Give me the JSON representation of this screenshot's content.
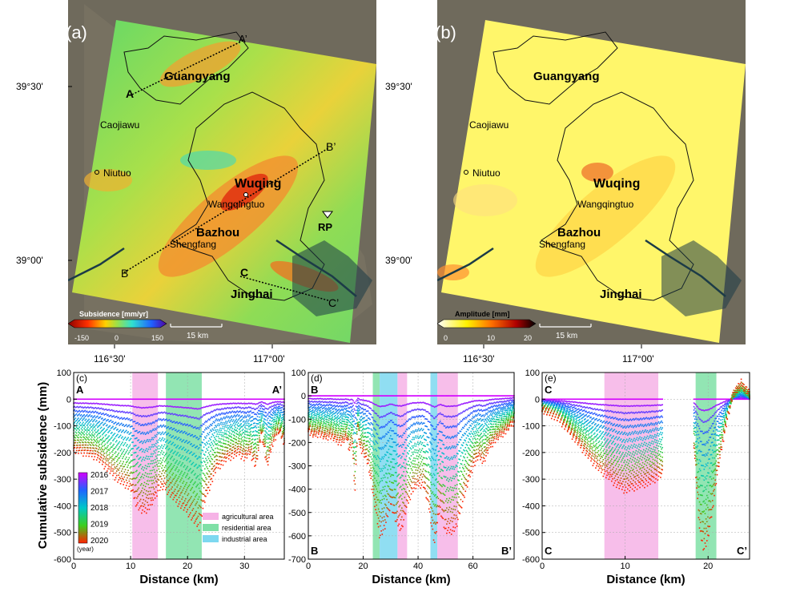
{
  "maps": {
    "a": {
      "panel_label": "(a)",
      "profile_labels": [
        "A",
        "A’",
        "B",
        "B’",
        "C",
        "C’"
      ],
      "cities": {
        "guangyang": "Guangyang",
        "caojiawu": "Caojiawu",
        "niutuo": "Niutuo",
        "wuqing": "Wuqing",
        "wangqingtuo": "Wangqingtuo",
        "bazhou": "Bazhou",
        "shengfang": "Shengfang",
        "jinghai": "Jinghai"
      },
      "rp_label": "RP",
      "colorbar_title": "Subsidence [mm/yr]",
      "colorbar_ticks": [
        "-150",
        "0",
        "150"
      ],
      "scale": "15 km",
      "lat_labels": [
        "39°30'",
        "39°00'"
      ],
      "lon_labels": [
        "116°30'",
        "117°00'"
      ]
    },
    "b": {
      "panel_label": "(b)",
      "cities": {
        "guangyang": "Guangyang",
        "caojiawu": "Caojiawu",
        "niutuo": "Niutuo",
        "wuqing": "Wuqing",
        "wangqingtuo": "Wangqingtuo",
        "bazhou": "Bazhou",
        "shengfang": "Shengfang",
        "jinghai": "Jinghai"
      },
      "colorbar_title": "Amplitude [mm]",
      "colorbar_ticks": [
        "0",
        "10",
        "20"
      ],
      "scale": "15 km",
      "lat_labels": [
        "39°30'",
        "39°00'"
      ],
      "lon_labels": [
        "116°30'",
        "117°00'"
      ]
    }
  },
  "colors": {
    "agricultural": "#f6b3e6",
    "residential": "#7fe0a6",
    "industrial": "#7dd8f0",
    "year_2016": "#d400ff",
    "year_2017": "#1e64ff",
    "year_2018": "#00c8c8",
    "year_2019": "#3ccf1e",
    "year_2020": "#ff2200"
  },
  "chart_data": [
    {
      "type": "scatter",
      "panel_label": "(c)",
      "start_label": "A",
      "end_label": "A’",
      "xlabel": "Distance (km)",
      "ylabel": "Cumulative subsidence (mm)",
      "xlim": [
        0,
        37
      ],
      "ylim": [
        -600,
        100
      ],
      "xticks": [
        0,
        10,
        20,
        30
      ],
      "yticks": [
        100,
        0,
        -100,
        -200,
        -300,
        -400,
        -500,
        -600
      ],
      "grid": true,
      "bands": [
        {
          "type": "agricultural",
          "x": [
            10.3,
            14.8
          ]
        },
        {
          "type": "residential",
          "x": [
            16.2,
            22.5
          ]
        }
      ],
      "final_profile": {
        "x": [
          0,
          2,
          4,
          6,
          8,
          10,
          11,
          12,
          13,
          14,
          15,
          16,
          18,
          20,
          21,
          22,
          23,
          25,
          27,
          29,
          30,
          31,
          32,
          33,
          34,
          35,
          36,
          37
        ],
        "y": [
          -190,
          -200,
          -215,
          -260,
          -305,
          -330,
          -390,
          -420,
          -410,
          -380,
          -330,
          -330,
          -380,
          -420,
          -450,
          -480,
          -380,
          -260,
          -220,
          -200,
          -220,
          -200,
          -250,
          -130,
          -250,
          -160,
          -120,
          -160
        ]
      },
      "colorbar": {
        "labels": [
          "2016",
          "2017",
          "2018",
          "2019",
          "2020"
        ],
        "unit": "(year)"
      },
      "legend": {
        "agricultural": "agricultural area",
        "residential": "residential area",
        "industrial": "industrial area"
      },
      "legend_position": "bottom-right"
    },
    {
      "type": "scatter",
      "panel_label": "(d)",
      "start_label": "B",
      "end_label": "B’",
      "xlim": [
        0,
        75
      ],
      "ylim": [
        -700,
        100
      ],
      "xticks": [
        0,
        20,
        40,
        60
      ],
      "yticks": [
        100,
        0,
        -100,
        -200,
        -300,
        -400,
        -500,
        -600,
        -700
      ],
      "grid": true,
      "bands": [
        {
          "type": "residential",
          "x": [
            23.5,
            26
          ]
        },
        {
          "type": "industrial",
          "x": [
            26,
            32.5
          ]
        },
        {
          "type": "agricultural",
          "x": [
            32.5,
            36
          ]
        },
        {
          "type": "industrial",
          "x": [
            44.5,
            47
          ]
        },
        {
          "type": "agricultural",
          "x": [
            47,
            54.5
          ]
        }
      ],
      "final_profile": {
        "x": [
          0,
          2,
          4,
          6,
          8,
          10,
          12,
          14,
          15,
          16,
          17,
          18,
          19,
          20,
          22,
          24,
          26,
          28,
          30,
          32,
          34,
          36,
          38,
          40,
          42,
          44,
          46,
          47,
          48,
          50,
          52,
          54,
          56,
          58,
          60,
          62,
          64,
          66,
          68,
          70,
          72,
          75
        ],
        "y": [
          -150,
          -170,
          -160,
          -180,
          -170,
          -190,
          -200,
          -180,
          -230,
          -200,
          -420,
          -130,
          -230,
          -240,
          -300,
          -450,
          -600,
          -560,
          -460,
          -540,
          -570,
          -470,
          -400,
          -380,
          -380,
          -480,
          -630,
          -550,
          -480,
          -580,
          -580,
          -560,
          -460,
          -380,
          -300,
          -260,
          -280,
          -220,
          -190,
          -170,
          -150,
          -110
        ]
      }
    },
    {
      "type": "scatter",
      "panel_label": "(e)",
      "start_label": "C",
      "end_label": "C’",
      "xlim": [
        0,
        25
      ],
      "ylim": [
        -600,
        100
      ],
      "xticks": [
        0,
        10,
        20
      ],
      "yticks": [
        100,
        0,
        -100,
        -200,
        -300,
        -400,
        -500,
        -600
      ],
      "grid": true,
      "bands": [
        {
          "type": "agricultural",
          "x": [
            7.5,
            14
          ]
        },
        {
          "type": "residential",
          "x": [
            18.5,
            21
          ]
        }
      ],
      "segments": [
        {
          "x": [
            0,
            1,
            2,
            3,
            4,
            5,
            6,
            7,
            8,
            9,
            10,
            11,
            12,
            13,
            14.5
          ],
          "y": [
            -40,
            -55,
            -75,
            -110,
            -150,
            -190,
            -230,
            -265,
            -290,
            -320,
            -340,
            -330,
            -320,
            -310,
            -280
          ]
        },
        {
          "x": [
            18.3,
            19,
            19.5,
            20,
            20.5,
            21,
            22,
            23,
            24,
            25
          ],
          "y": [
            -180,
            -500,
            -560,
            -520,
            -420,
            -300,
            -120,
            20,
            60,
            20
          ]
        }
      ]
    }
  ]
}
